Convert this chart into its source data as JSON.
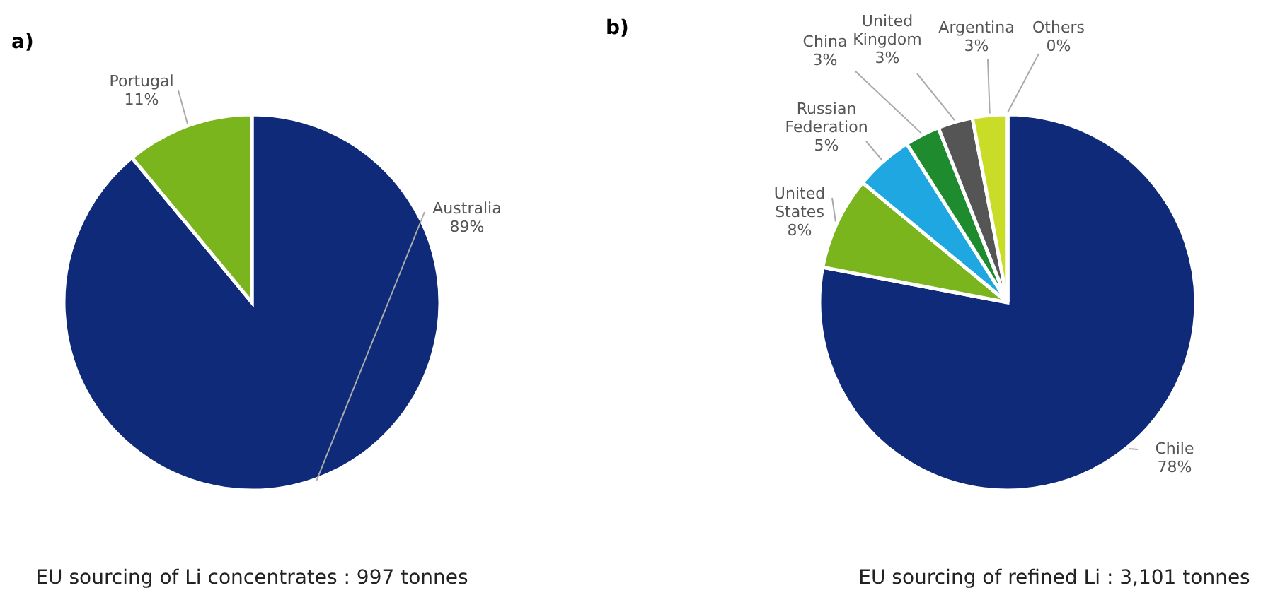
{
  "chart_data": [
    {
      "type": "pie",
      "title": "a)",
      "categories": [
        "Australia",
        "Portugal"
      ],
      "values": [
        89,
        11
      ],
      "value_labels": [
        "89%",
        "11%"
      ],
      "colors": [
        "#0f2a78",
        "#7ab51d"
      ],
      "annotations": [
        "EU sourcing of Li concentrates : 997 tonnes"
      ]
    },
    {
      "type": "pie",
      "title": "b)",
      "categories": [
        "Chile",
        "United States",
        "Russian Federation",
        "China",
        "United Kingdom",
        "Argentina",
        "Others"
      ],
      "values": [
        78,
        8,
        5,
        3,
        3,
        3,
        0
      ],
      "value_labels": [
        "78%",
        "8%",
        "5%",
        "3%",
        "3%",
        "3%",
        "0%"
      ],
      "colors": [
        "#0f2a78",
        "#7ab51d",
        "#1ea7e1",
        "#1e8c2e",
        "#555555",
        "#c8dc28",
        "#9a9a9a"
      ],
      "annotations": [
        "EU sourcing of refined Li : 3,101 tonnes"
      ]
    }
  ]
}
